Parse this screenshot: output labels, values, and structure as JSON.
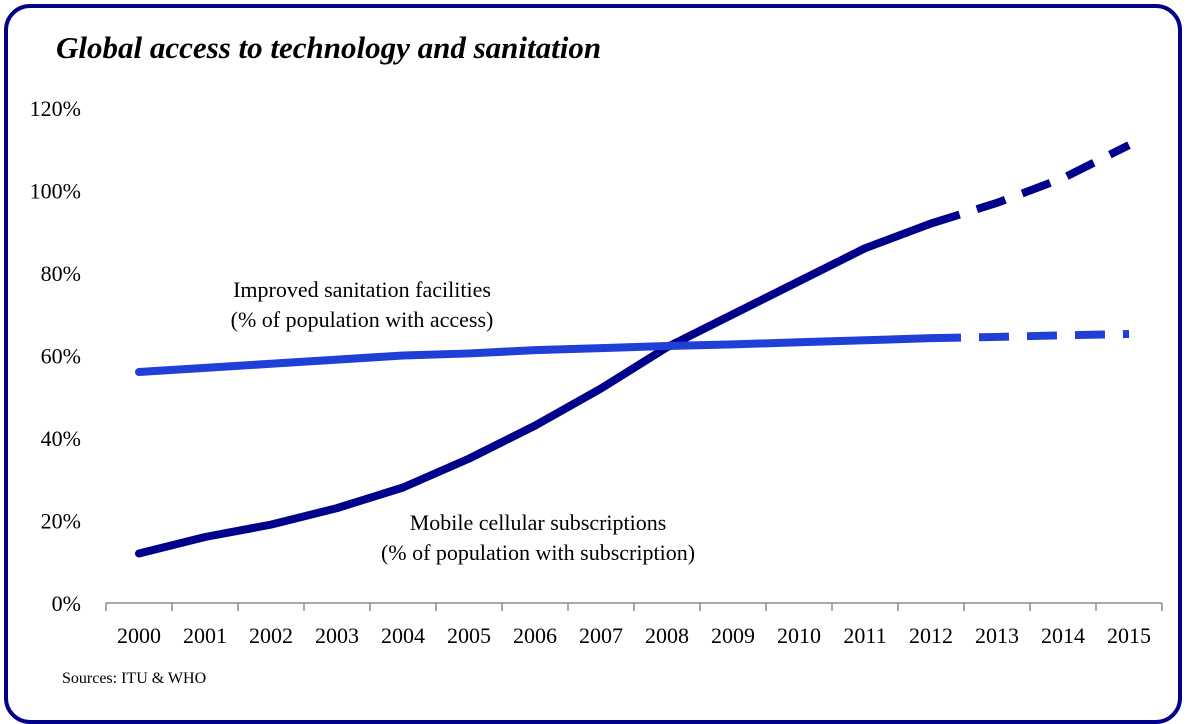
{
  "chart_data": {
    "type": "line",
    "title": "Global access to technology and sanitation",
    "xlabel": "",
    "ylabel": "",
    "x": [
      2000,
      2001,
      2002,
      2003,
      2004,
      2005,
      2006,
      2007,
      2008,
      2009,
      2010,
      2011,
      2012,
      2013,
      2014,
      2015
    ],
    "ylim": [
      0,
      120
    ],
    "yticks": [
      "0%",
      "20%",
      "40%",
      "60%",
      "80%",
      "100%",
      "120%"
    ],
    "grid": false,
    "legend": "none",
    "series": [
      {
        "name": "Mobile cellular subscriptions (% of population with subscription)",
        "label_lines": [
          "Mobile cellular subscriptions",
          "(% of population with subscription)"
        ],
        "color": "#00008B",
        "values": [
          12,
          16,
          19,
          23,
          28,
          35,
          43,
          52,
          62,
          70,
          78,
          86,
          92,
          97,
          103,
          111
        ],
        "projection_from": 2012
      },
      {
        "name": "Improved sanitation facilities (% of population with access)",
        "label_lines": [
          "Improved sanitation facilities",
          "(% of population with access)"
        ],
        "color": "#1F3FD6",
        "values": [
          56,
          57,
          58,
          59,
          60,
          60.5,
          61.3,
          61.8,
          62.3,
          62.7,
          63.2,
          63.7,
          64.2,
          64.5,
          64.9,
          65.2
        ],
        "projection_from": 2012
      }
    ]
  },
  "source_note": "Sources: ITU & WHO"
}
